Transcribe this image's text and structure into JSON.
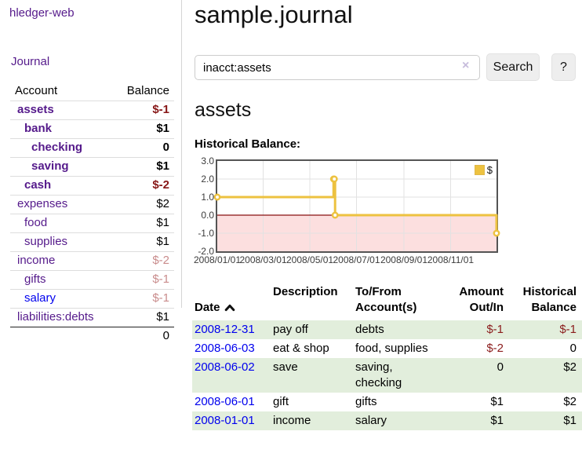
{
  "app": {
    "title": "hledger-web"
  },
  "colors": {
    "link_visited_purple": "#551a8b",
    "link_unvisited_blue": "#0000ee",
    "negative_strong": "#871717",
    "negative_light": "#c98c8c",
    "negative": "#8b1c1c",
    "row_stripe_green": "#e2eedc",
    "chart_line_gold": "#edc240",
    "chart_negative_fill": "#fcdfdf",
    "chart_zero_line": "#881111"
  },
  "sidebar": {
    "nav": {
      "journal_label": "Journal"
    },
    "accounts_table": {
      "headers": {
        "account": "Account",
        "balance": "Balance"
      },
      "rows": [
        {
          "name": "assets",
          "indent": 1,
          "bold": true,
          "link_style": "visited",
          "balance": "$-1",
          "balance_style": "neg-strong"
        },
        {
          "name": "bank",
          "indent": 2,
          "bold": true,
          "link_style": "visited",
          "balance": "$1",
          "balance_style": "pos-strong"
        },
        {
          "name": "checking",
          "indent": 3,
          "bold": true,
          "link_style": "visited",
          "balance": "0",
          "balance_style": "pos-strong"
        },
        {
          "name": "saving",
          "indent": 3,
          "bold": true,
          "link_style": "visited",
          "balance": "$1",
          "balance_style": "pos-strong"
        },
        {
          "name": "cash",
          "indent": 2,
          "bold": true,
          "link_style": "visited",
          "balance": "$-2",
          "balance_style": "neg-strong"
        },
        {
          "name": "expenses",
          "indent": 1,
          "bold": false,
          "link_style": "visited",
          "balance": "$2",
          "balance_style": "pos"
        },
        {
          "name": "food",
          "indent": 2,
          "bold": false,
          "link_style": "visited",
          "balance": "$1",
          "balance_style": "pos"
        },
        {
          "name": "supplies",
          "indent": 2,
          "bold": false,
          "link_style": "visited",
          "balance": "$1",
          "balance_style": "pos"
        },
        {
          "name": "income",
          "indent": 1,
          "bold": false,
          "link_style": "visited",
          "balance": "$-2",
          "balance_style": "neg-light"
        },
        {
          "name": "gifts",
          "indent": 2,
          "bold": false,
          "link_style": "visited",
          "balance": "$-1",
          "balance_style": "neg-light"
        },
        {
          "name": "salary",
          "indent": 2,
          "bold": false,
          "link_style": "unvisited",
          "balance": "$-1",
          "balance_style": "neg-light"
        },
        {
          "name": "liabilities:debts",
          "indent": 1,
          "bold": false,
          "link_style": "visited",
          "balance": "$1",
          "balance_style": "pos"
        }
      ],
      "total": "0"
    }
  },
  "main": {
    "title": "sample.journal",
    "search": {
      "value": "inacct:assets",
      "clear_icon": "×",
      "button_label": "Search",
      "help_label": "?"
    },
    "account_heading": "assets",
    "chart_label": "Historical Balance:",
    "register": {
      "headers": {
        "date": "Date",
        "description": "Description",
        "accounts": "To/From\nAccount(s)",
        "amount": "Amount\nOut/In",
        "balance": "Historical\nBalance"
      },
      "sort": {
        "column": "date",
        "direction": "ascending",
        "icon": "chevron-up"
      },
      "rows": [
        {
          "date": "2008-12-31",
          "description": "pay off",
          "accounts": "debts",
          "amount": "$-1",
          "amount_style": "neg",
          "balance": "$-1",
          "balance_style": "neg",
          "striped": true
        },
        {
          "date": "2008-06-03",
          "description": "eat & shop",
          "accounts": "food, supplies",
          "amount": "$-2",
          "amount_style": "neg",
          "balance": "0",
          "balance_style": "pos",
          "striped": false
        },
        {
          "date": "2008-06-02",
          "description": "save",
          "accounts": "saving,\nchecking",
          "amount": "0",
          "amount_style": "pos",
          "balance": "$2",
          "balance_style": "pos",
          "striped": true
        },
        {
          "date": "2008-06-01",
          "description": "gift",
          "accounts": "gifts",
          "amount": "$1",
          "amount_style": "pos",
          "balance": "$2",
          "balance_style": "pos",
          "striped": false
        },
        {
          "date": "2008-01-01",
          "description": "income",
          "accounts": "salary",
          "amount": "$1",
          "amount_style": "pos",
          "balance": "$1",
          "balance_style": "pos",
          "striped": true
        }
      ]
    }
  },
  "chart_data": {
    "type": "line",
    "title": "Historical Balance:",
    "step": true,
    "series": [
      {
        "name": "$",
        "color": "#edc240",
        "points": [
          [
            "2008-01-01",
            1
          ],
          [
            "2008-06-01",
            2
          ],
          [
            "2008-06-02",
            2
          ],
          [
            "2008-06-03",
            0
          ],
          [
            "2008-12-31",
            -1
          ]
        ]
      }
    ],
    "x_range": [
      "2008-01-01",
      "2008-12-31"
    ],
    "ylim": [
      -2,
      3
    ],
    "y_ticks": [
      "3.0",
      "2.0",
      "1.0",
      "0.0",
      "-1.0",
      "-2.0"
    ],
    "x_ticks": [
      "2008/01/01",
      "2008/03/01",
      "2008/05/01",
      "2008/07/01",
      "2008/09/01",
      "2008/11/01"
    ],
    "x_tick_dates": [
      "2008-01-01",
      "2008-03-01",
      "2008-05-01",
      "2008-07-01",
      "2008-09-01",
      "2008-11-01"
    ],
    "grid": true,
    "negative_region_shaded": true,
    "zero_line": true,
    "legend": {
      "position": "top-right",
      "entries": [
        {
          "label": "$",
          "color": "#edc240"
        }
      ]
    }
  }
}
